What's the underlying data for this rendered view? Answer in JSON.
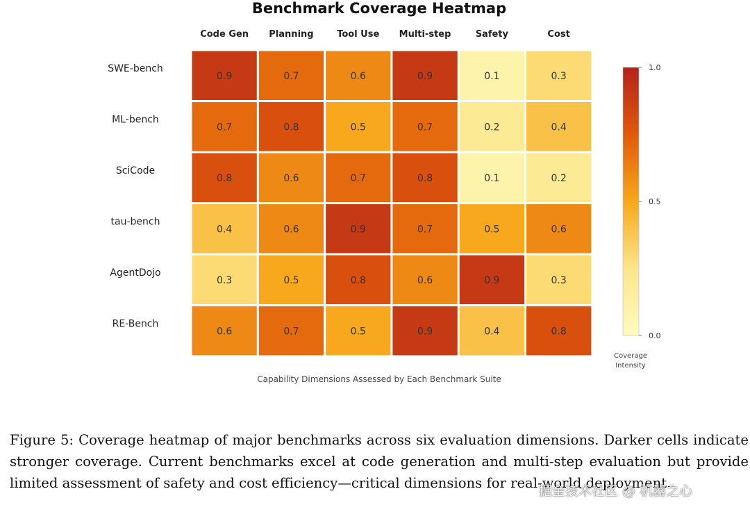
{
  "chart_data": {
    "type": "heatmap",
    "title": "Benchmark Coverage Heatmap",
    "columns": [
      "Code Gen",
      "Planning",
      "Tool Use",
      "Multi-step",
      "Safety",
      "Cost"
    ],
    "rows": [
      "SWE-bench",
      "ML-bench",
      "SciCode",
      "tau-bench",
      "AgentDojo",
      "RE-Bench"
    ],
    "values": [
      [
        0.9,
        0.7,
        0.6,
        0.9,
        0.1,
        0.3
      ],
      [
        0.7,
        0.8,
        0.5,
        0.7,
        0.2,
        0.4
      ],
      [
        0.8,
        0.6,
        0.7,
        0.8,
        0.1,
        0.2
      ],
      [
        0.4,
        0.6,
        0.9,
        0.7,
        0.5,
        0.6
      ],
      [
        0.3,
        0.5,
        0.8,
        0.6,
        0.9,
        0.3
      ],
      [
        0.6,
        0.7,
        0.5,
        0.9,
        0.4,
        0.8
      ]
    ],
    "xlabel": "Capability Dimensions Assessed by Each Benchmark Suite",
    "colorbar": {
      "label_line1": "Coverage",
      "label_line2": "Intensity",
      "ticks": [
        "1.0",
        "0.5",
        "0.0"
      ],
      "range": [
        0,
        1
      ],
      "colormap": "YlOrRd"
    }
  },
  "caption": "Figure 5: Coverage heatmap of major benchmarks across six evaluation dimensions. Darker cells indicate stronger coverage. Current benchmarks excel at code generation and multi-step evaluation but provide limited assessment of safety and cost efficiency—critical dimensions for real-world deployment.",
  "watermark": "掘金技术社区 @ 机器之心"
}
